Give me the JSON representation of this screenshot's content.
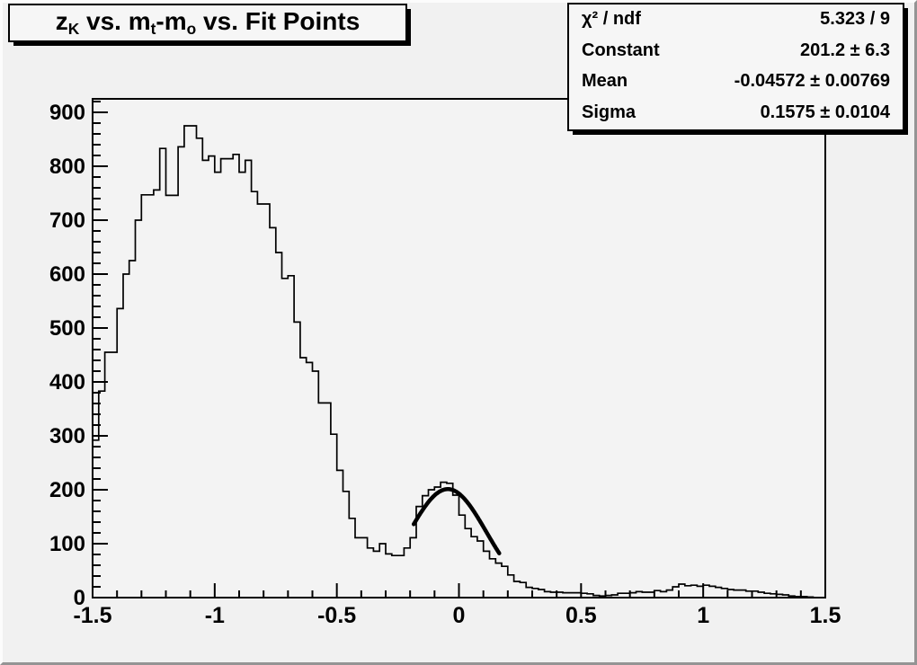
{
  "colors": {
    "canvas_bg": "#f1f1f1",
    "plot_bg": "#f3f3f3",
    "line": "#000000",
    "pave_bg": "#f6f6f6"
  },
  "title": {
    "text": "zK vs. mt-mo vs. Fit Points",
    "parts": [
      {
        "text": "z",
        "sub": false
      },
      {
        "text": "K",
        "sub": true
      },
      {
        "text": " vs. m",
        "sub": false
      },
      {
        "text": "t",
        "sub": true
      },
      {
        "text": "-m",
        "sub": false
      },
      {
        "text": "o",
        "sub": true
      },
      {
        "text": " vs. Fit Points",
        "sub": false
      }
    ]
  },
  "stats": {
    "rows": [
      {
        "label": "χ² / ndf",
        "value": "5.323 / 9"
      },
      {
        "label": "Constant",
        "value": "201.2 ± 6.3"
      },
      {
        "label": "Mean",
        "value": "-0.04572 ± 0.00769"
      },
      {
        "label": "Sigma",
        "value": "0.1575 ± 0.0104"
      }
    ]
  },
  "chart_data": {
    "type": "bar",
    "subtype": "step-histogram",
    "title": "zK vs. mt-mo vs. Fit Points",
    "xlabel": "",
    "ylabel": "",
    "xlim": [
      -1.5,
      1.5
    ],
    "ylim": [
      0,
      925
    ],
    "grid": false,
    "legend": false,
    "bin_start": -1.5,
    "bin_width": 0.025,
    "n_bins": 120,
    "values": [
      292,
      383,
      455,
      455,
      536,
      600,
      625,
      700,
      747,
      747,
      756,
      833,
      746,
      746,
      836,
      875,
      875,
      852,
      811,
      819,
      789,
      814,
      814,
      822,
      789,
      811,
      753,
      730,
      730,
      686,
      640,
      592,
      597,
      511,
      445,
      436,
      420,
      361,
      361,
      303,
      236,
      197,
      147,
      111,
      111,
      92,
      86,
      100,
      81,
      78,
      78,
      92,
      111,
      169,
      189,
      200,
      205,
      214,
      212,
      190,
      153,
      128,
      113,
      105,
      86,
      72,
      64,
      58,
      42,
      30,
      28,
      19,
      17,
      15,
      11,
      10,
      10,
      9,
      9,
      9,
      8,
      7,
      4,
      3,
      4,
      5,
      8,
      8,
      9,
      11,
      10,
      10,
      13,
      11,
      14,
      20,
      25,
      22,
      23,
      21,
      23,
      21,
      19,
      17,
      15,
      14,
      14,
      12,
      12,
      10,
      8,
      7,
      6,
      5,
      3,
      2,
      2,
      1,
      0,
      0
    ],
    "x_major_ticks": [
      -1.5,
      -1,
      -0.5,
      0,
      0.5,
      1,
      1.5
    ],
    "x_tick_labels": [
      "-1.5",
      "-1",
      "-0.5",
      "0",
      "0.5",
      "1",
      "1.5"
    ],
    "x_minor_step": 0.1,
    "y_major_ticks": [
      0,
      100,
      200,
      300,
      400,
      500,
      600,
      700,
      800,
      900
    ],
    "y_tick_labels": [
      "0",
      "100",
      "200",
      "300",
      "400",
      "500",
      "600",
      "700",
      "800",
      "900"
    ],
    "y_minor_step": 20,
    "fit": {
      "type": "gaussian",
      "constant": 201.2,
      "mean": -0.04572,
      "sigma": 0.1575,
      "chi2": 5.323,
      "ndf": 9,
      "draw_range": [
        -0.185,
        0.165
      ]
    }
  }
}
